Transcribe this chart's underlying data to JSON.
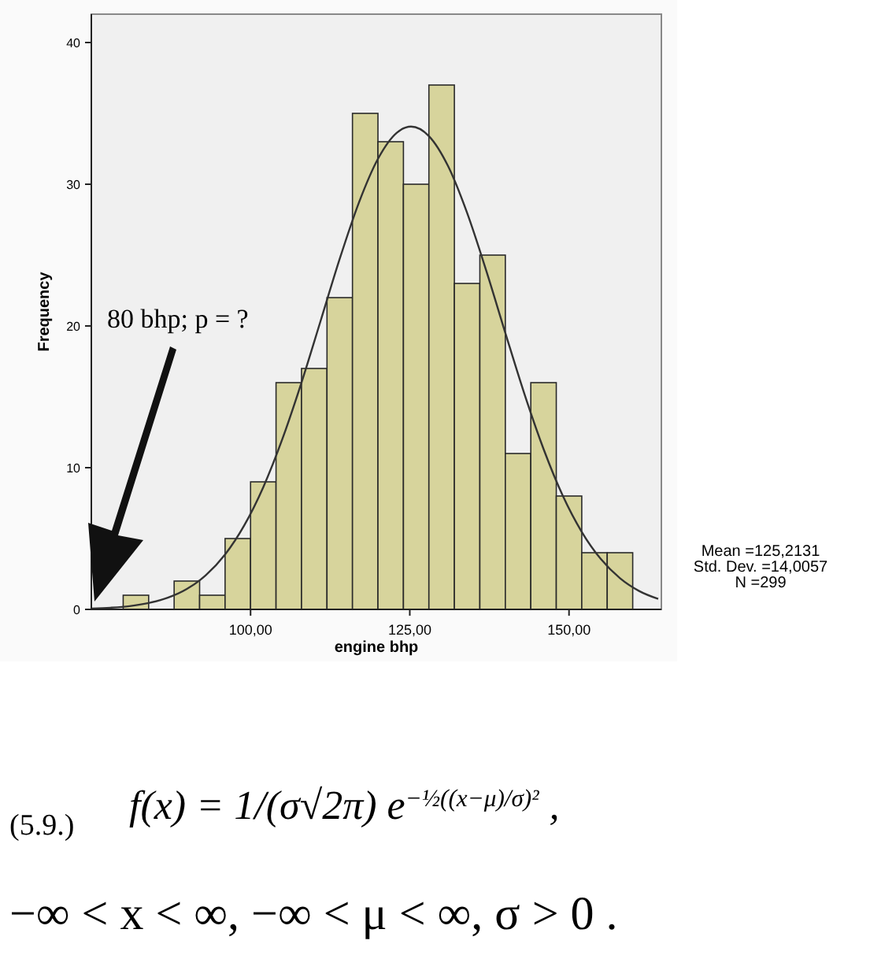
{
  "chart_data": {
    "type": "histogram",
    "xlabel": "engine bhp",
    "ylabel": "Frequency",
    "color": "#d7d49c",
    "bins": [
      80,
      84,
      88,
      92,
      96,
      100,
      104,
      108,
      112,
      116,
      120,
      124,
      128,
      132,
      136,
      140,
      144,
      148,
      152,
      156,
      160
    ],
    "values": [
      1,
      0,
      2,
      1,
      5,
      9,
      16,
      17,
      22,
      35,
      33,
      30,
      37,
      23,
      25,
      11,
      16,
      8,
      4,
      4
    ],
    "xlim": [
      75,
      164.5
    ],
    "ylim": [
      0,
      42
    ],
    "xticks": [
      {
        "value": 100,
        "label": "100,00"
      },
      {
        "value": 125,
        "label": "125,00"
      },
      {
        "value": 150,
        "label": "150,00"
      }
    ],
    "yticks": [
      0,
      10,
      20,
      30,
      40
    ],
    "series": [
      {
        "type": "line",
        "color": "#333333",
        "x": [
          75,
          78,
          81,
          84,
          87,
          90,
          93,
          96,
          99,
          102,
          105,
          108,
          111,
          114,
          117,
          120,
          123,
          125.2,
          128,
          131,
          134,
          137,
          140,
          143,
          146,
          149,
          152,
          155,
          158,
          161,
          164
        ],
        "values": [
          0.06,
          0.12,
          0.23,
          0.45,
          0.82,
          1.44,
          2.42,
          3.87,
          5.92,
          8.63,
          12.03,
          16.01,
          20.36,
          24.74,
          28.69,
          31.79,
          33.65,
          34.07,
          33.4,
          31.29,
          27.98,
          23.91,
          19.51,
          15.2,
          11.32,
          8.04,
          5.47,
          3.55,
          2.2,
          1.3,
          0.74
        ]
      }
    ],
    "annotations": [
      "80 bhp; p = ?",
      "Mean =125,2131",
      "Std. Dev. =14,0057",
      "N =299",
      "(5.9.)",
      "f(x) = 1/(σ√2π) e$^{−½((x−μ)/σ)²}$ ,",
      "−∞ < x < ∞,  −∞ < μ < ∞,  σ > 0 ."
    ]
  }
}
